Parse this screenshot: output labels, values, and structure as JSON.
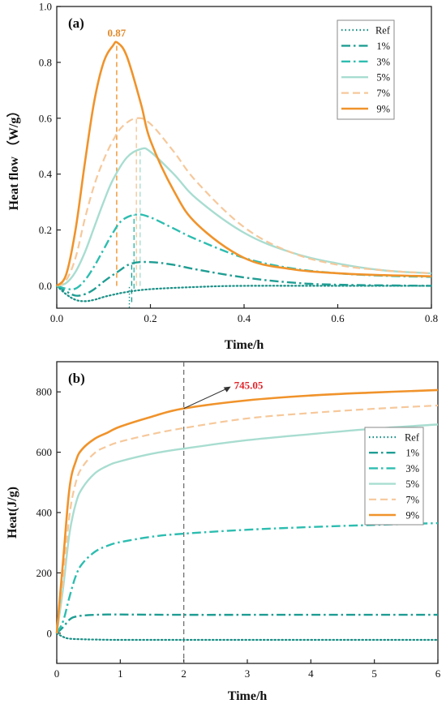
{
  "colors": {
    "ref": "#1a8f86",
    "c1": "#1f9d93",
    "c3": "#2dbdb0",
    "c5": "#a8ddd0",
    "c7": "#f6c89b",
    "c9": "#f0932b",
    "peak_label": "#e08a2c",
    "value_label": "#e0242a"
  },
  "legend": {
    "items": [
      {
        "key": "ref",
        "label": "Ref",
        "dash": "dotted"
      },
      {
        "key": "c1",
        "label": "1%",
        "dash": "dashdot"
      },
      {
        "key": "c3",
        "label": "3%",
        "dash": "dashdot"
      },
      {
        "key": "c5",
        "label": "5%",
        "dash": "solid"
      },
      {
        "key": "c7",
        "label": "7%",
        "dash": "dashed"
      },
      {
        "key": "c9",
        "label": "9%",
        "dash": "solid"
      }
    ]
  },
  "chart_data": [
    {
      "type": "line",
      "panel_label": "(a)",
      "xlabel": "Time/h",
      "ylabel": "Heat flow （W/g）",
      "xlim": [
        0.0,
        0.8
      ],
      "ylim": [
        -0.08,
        1.0
      ],
      "xticks": [
        "0.0",
        "0.2",
        "0.4",
        "0.6",
        "0.8"
      ],
      "yticks": [
        "0.0",
        "0.2",
        "0.4",
        "0.6",
        "0.8",
        "1.0"
      ],
      "xtick_values": [
        0.0,
        0.2,
        0.4,
        0.6,
        0.8
      ],
      "ytick_values": [
        0.0,
        0.2,
        0.4,
        0.6,
        0.8,
        1.0
      ],
      "legend_position": "top-right",
      "annotation": {
        "text": "0.87",
        "x": 0.128,
        "y": 0.87
      },
      "series": [
        {
          "name": "Ref",
          "color_key": "ref",
          "dash": "dotted",
          "x": [
            0,
            0.02,
            0.04,
            0.06,
            0.08,
            0.1,
            0.12,
            0.15,
            0.2,
            0.3,
            0.4,
            0.6,
            0.8
          ],
          "y": [
            0,
            -0.03,
            -0.05,
            -0.055,
            -0.05,
            -0.04,
            -0.032,
            -0.022,
            -0.012,
            -0.004,
            0,
            0,
            0
          ],
          "marker_x": 0.155
        },
        {
          "name": "1%",
          "color_key": "c1",
          "dash": "dashdot",
          "x": [
            0,
            0.02,
            0.04,
            0.06,
            0.08,
            0.1,
            0.13,
            0.16,
            0.2,
            0.25,
            0.3,
            0.4,
            0.5,
            0.6,
            0.8
          ],
          "y": [
            0,
            -0.02,
            -0.035,
            -0.03,
            -0.012,
            0.015,
            0.05,
            0.08,
            0.085,
            0.075,
            0.058,
            0.03,
            0.012,
            0.004,
            0
          ],
          "marker_x": 0.16
        },
        {
          "name": "3%",
          "color_key": "c3",
          "dash": "dashdot",
          "x": [
            0,
            0.02,
            0.04,
            0.06,
            0.08,
            0.1,
            0.12,
            0.14,
            0.17,
            0.2,
            0.25,
            0.3,
            0.4,
            0.5,
            0.6,
            0.7,
            0.8
          ],
          "y": [
            0,
            -0.01,
            -0.01,
            0.02,
            0.07,
            0.13,
            0.19,
            0.235,
            0.255,
            0.245,
            0.205,
            0.165,
            0.1,
            0.063,
            0.045,
            0.036,
            0.032
          ],
          "marker_x": 0.165
        },
        {
          "name": "5%",
          "color_key": "c5",
          "dash": "solid",
          "x": [
            0,
            0.02,
            0.04,
            0.06,
            0.08,
            0.1,
            0.12,
            0.15,
            0.18,
            0.2,
            0.25,
            0.3,
            0.4,
            0.5,
            0.6,
            0.7,
            0.8
          ],
          "y": [
            0,
            0.01,
            0.05,
            0.12,
            0.21,
            0.3,
            0.38,
            0.46,
            0.49,
            0.48,
            0.4,
            0.31,
            0.19,
            0.12,
            0.08,
            0.055,
            0.045
          ],
          "marker_x": 0.178
        },
        {
          "name": "7%",
          "color_key": "c7",
          "dash": "dashed",
          "x": [
            0,
            0.02,
            0.04,
            0.06,
            0.08,
            0.1,
            0.12,
            0.14,
            0.17,
            0.2,
            0.25,
            0.3,
            0.4,
            0.5,
            0.6,
            0.7,
            0.8
          ],
          "y": [
            0,
            0.02,
            0.1,
            0.24,
            0.36,
            0.45,
            0.52,
            0.57,
            0.6,
            0.58,
            0.48,
            0.37,
            0.21,
            0.12,
            0.075,
            0.055,
            0.045
          ],
          "marker_x": 0.17
        },
        {
          "name": "9%",
          "color_key": "c9",
          "dash": "solid",
          "x": [
            0,
            0.02,
            0.04,
            0.06,
            0.08,
            0.1,
            0.12,
            0.13,
            0.15,
            0.18,
            0.2,
            0.25,
            0.3,
            0.4,
            0.5,
            0.6,
            0.7,
            0.8
          ],
          "y": [
            0,
            0.04,
            0.2,
            0.44,
            0.66,
            0.8,
            0.86,
            0.87,
            0.82,
            0.65,
            0.52,
            0.34,
            0.22,
            0.1,
            0.06,
            0.045,
            0.038,
            0.034
          ],
          "marker_x": 0.128
        }
      ]
    },
    {
      "type": "line",
      "panel_label": "(b)",
      "xlabel": "Time/h",
      "ylabel": "Heat(J/g)",
      "xlim": [
        0,
        6
      ],
      "ylim": [
        -100,
        900
      ],
      "xticks": [
        "0",
        "1",
        "2",
        "3",
        "4",
        "5",
        "6"
      ],
      "yticks": [
        "0",
        "200",
        "400",
        "600",
        "800"
      ],
      "xtick_values": [
        0,
        1,
        2,
        3,
        4,
        5,
        6
      ],
      "ytick_values": [
        0,
        200,
        400,
        600,
        800
      ],
      "legend_position": "right",
      "annotation": {
        "text": "745.05",
        "x": 2.0,
        "y": 745.05
      },
      "vline_x": 2.0,
      "series": [
        {
          "name": "Ref",
          "color_key": "ref",
          "dash": "dotted",
          "x": [
            0,
            0.1,
            0.2,
            0.4,
            0.6,
            1,
            2,
            3,
            4,
            5,
            6
          ],
          "y": [
            0,
            -12,
            -18,
            -20,
            -21,
            -22,
            -22,
            -22,
            -22,
            -22,
            -22
          ]
        },
        {
          "name": "1%",
          "color_key": "c1",
          "dash": "dashdot",
          "x": [
            0,
            0.1,
            0.2,
            0.3,
            0.5,
            0.8,
            1,
            2,
            3,
            4,
            5,
            6
          ],
          "y": [
            0,
            20,
            45,
            55,
            60,
            62,
            62,
            61,
            61,
            61,
            61,
            61
          ]
        },
        {
          "name": "3%",
          "color_key": "c3",
          "dash": "dashdot",
          "x": [
            0,
            0.1,
            0.2,
            0.3,
            0.4,
            0.6,
            0.8,
            1,
            1.5,
            2,
            3,
            4,
            5,
            6
          ],
          "y": [
            0,
            40,
            120,
            190,
            230,
            270,
            290,
            302,
            320,
            330,
            343,
            352,
            359,
            365
          ]
        },
        {
          "name": "5%",
          "color_key": "c5",
          "dash": "solid",
          "x": [
            0,
            0.1,
            0.2,
            0.3,
            0.4,
            0.6,
            0.8,
            1,
            1.5,
            2,
            3,
            4,
            5,
            6
          ],
          "y": [
            0,
            150,
            330,
            430,
            480,
            530,
            555,
            570,
            595,
            612,
            640,
            660,
            678,
            692
          ]
        },
        {
          "name": "7%",
          "color_key": "c7",
          "dash": "dashed",
          "x": [
            0,
            0.1,
            0.2,
            0.3,
            0.4,
            0.6,
            0.8,
            1,
            1.5,
            2,
            3,
            4,
            5,
            6
          ],
          "y": [
            0,
            180,
            390,
            500,
            550,
            598,
            620,
            635,
            660,
            680,
            712,
            730,
            744,
            755
          ]
        },
        {
          "name": "9%",
          "color_key": "c9",
          "dash": "solid",
          "x": [
            0,
            0.1,
            0.2,
            0.3,
            0.4,
            0.6,
            0.8,
            1,
            1.5,
            2,
            3,
            4,
            5,
            6
          ],
          "y": [
            0,
            240,
            480,
            570,
            610,
            645,
            665,
            685,
            718,
            745.05,
            772,
            788,
            798,
            806
          ]
        }
      ]
    }
  ]
}
